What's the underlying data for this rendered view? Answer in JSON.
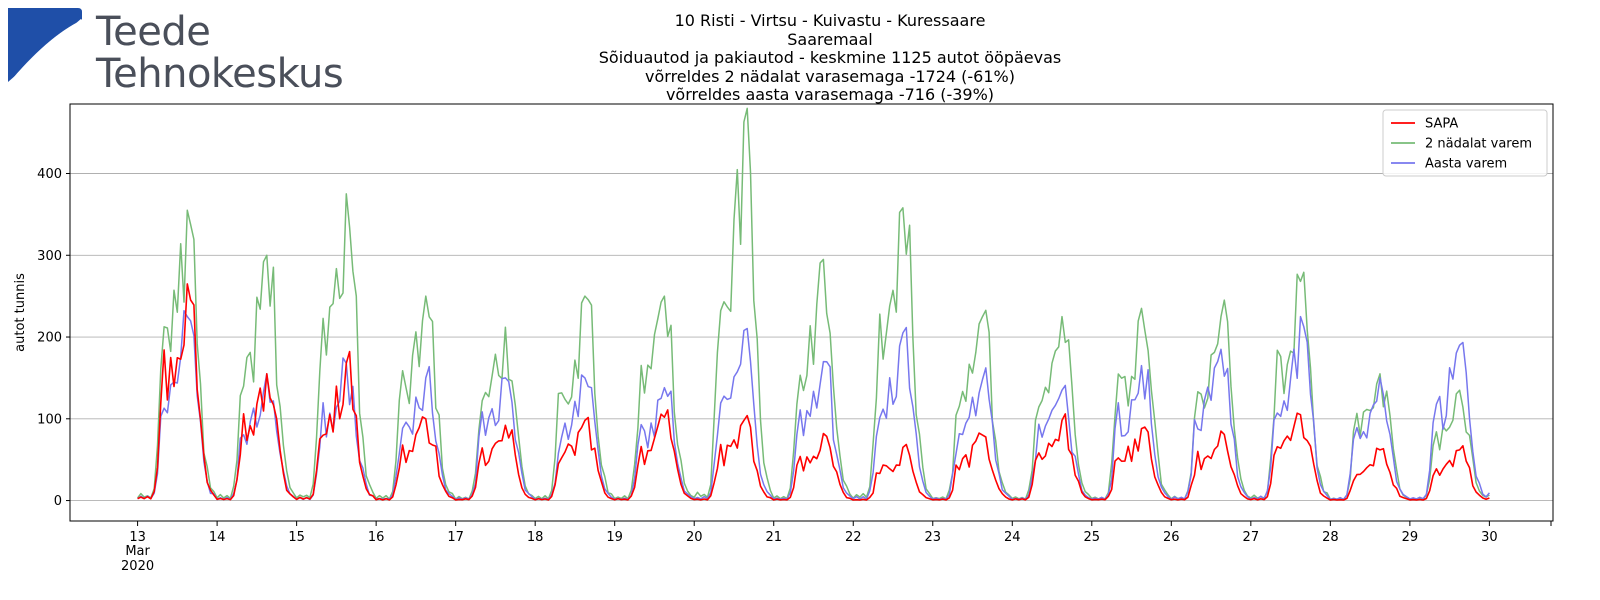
{
  "logo": {
    "line1": "Teede",
    "line2": "Tehnokeskus",
    "colors": {
      "mark": "#1f4fa8",
      "text": "#4a4f5a"
    }
  },
  "title_lines": [
    "10 Risti - Virtsu - Kuivastu - Kuressaare",
    "Saaremaal",
    "Sõiduautod ja pakiautod - keskmine 1125 autot ööpäevas",
    "võrreldes 2 nädalat varasemaga -1724 (-61%)",
    "võrreldes aasta varasemaga -716 (-39%)"
  ],
  "chart_data": {
    "type": "line",
    "ylabel": "autot tunnis",
    "xlabel": "",
    "ylim": [
      -25,
      485
    ],
    "yticks": [
      0,
      100,
      200,
      300,
      400
    ],
    "grid": "horizontal",
    "legend_position": "top-right",
    "x_unit": "days from 13 Mar 2020 (hourly resolution)",
    "xlim": [
      -0.85,
      17.8
    ],
    "xticks": [
      {
        "label": "13",
        "sub": [
          "Mar",
          "2020"
        ]
      },
      {
        "label": "14"
      },
      {
        "label": "15"
      },
      {
        "label": "16"
      },
      {
        "label": "17"
      },
      {
        "label": "18"
      },
      {
        "label": "19"
      },
      {
        "label": "20"
      },
      {
        "label": "21"
      },
      {
        "label": "22"
      },
      {
        "label": "23"
      },
      {
        "label": "24"
      },
      {
        "label": "25"
      },
      {
        "label": "26"
      },
      {
        "label": "27"
      },
      {
        "label": "28"
      },
      {
        "label": "29"
      },
      {
        "label": "30"
      }
    ],
    "daily_peaks": {
      "days": [
        "13",
        "14",
        "15",
        "16",
        "17",
        "18",
        "19",
        "20",
        "21",
        "22",
        "23",
        "24",
        "25",
        "26",
        "27",
        "28",
        "29"
      ],
      "series": [
        {
          "name": "SAPA",
          "color": "#ff0000",
          "values": [
            265,
            155,
            168,
            100,
            92,
            98,
            102,
            98,
            82,
            65,
            80,
            98,
            88,
            85,
            105,
            62,
            62
          ]
        },
        {
          "name": "2 nädalat varem",
          "color": "#77bb77",
          "values": [
            355,
            300,
            375,
            250,
            212,
            250,
            250,
            463,
            295,
            358,
            225,
            225,
            235,
            225,
            268,
            155,
            135
          ]
        },
        {
          "name": "Aasta varem",
          "color": "#7777ee",
          "values": [
            225,
            155,
            168,
            150,
            150,
            150,
            138,
            208,
            170,
            205,
            148,
            135,
            165,
            185,
            225,
            150,
            190
          ]
        }
      ]
    }
  }
}
